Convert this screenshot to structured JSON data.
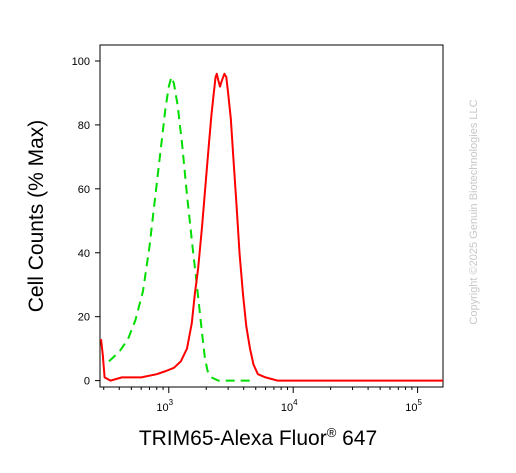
{
  "chart_data": {
    "type": "line",
    "xlabel": "TRIM65-Alexa Fluor",
    "xlabel_superscript": "®",
    "xlabel_suffix": " 647",
    "ylabel": "Cell Counts (% Max)",
    "x_scale": "log",
    "xlim": [
      280,
      160000
    ],
    "ylim": [
      -2,
      105
    ],
    "y_ticks": [
      0,
      20,
      40,
      60,
      80,
      100
    ],
    "x_tick_labels": [
      {
        "value": 1000,
        "base": "10",
        "exp": "3"
      },
      {
        "value": 10000,
        "base": "10",
        "exp": "4"
      },
      {
        "value": 100000,
        "base": "10",
        "exp": "5"
      }
    ],
    "grid": false,
    "series": [
      {
        "color": "#00dd00",
        "style": "dashed",
        "points": [
          [
            330,
            6
          ],
          [
            400,
            9
          ],
          [
            470,
            13
          ],
          [
            540,
            19
          ],
          [
            620,
            28
          ],
          [
            700,
            42
          ],
          [
            780,
            58
          ],
          [
            860,
            72
          ],
          [
            940,
            85
          ],
          [
            1000,
            92
          ],
          [
            1050,
            95
          ],
          [
            1100,
            93
          ],
          [
            1180,
            86
          ],
          [
            1280,
            74
          ],
          [
            1400,
            58
          ],
          [
            1550,
            42
          ],
          [
            1700,
            28
          ],
          [
            1850,
            15
          ],
          [
            1950,
            7
          ],
          [
            2050,
            3
          ],
          [
            2200,
            1
          ],
          [
            2500,
            0
          ],
          [
            3000,
            0
          ],
          [
            5000,
            0
          ]
        ]
      },
      {
        "color": "#ff0000",
        "style": "solid",
        "points": [
          [
            285,
            13
          ],
          [
            295,
            8
          ],
          [
            305,
            1
          ],
          [
            340,
            0
          ],
          [
            420,
            1
          ],
          [
            600,
            1
          ],
          [
            800,
            2
          ],
          [
            950,
            3
          ],
          [
            1100,
            4
          ],
          [
            1250,
            6
          ],
          [
            1400,
            10
          ],
          [
            1530,
            18
          ],
          [
            1620,
            27
          ],
          [
            1720,
            35
          ],
          [
            1850,
            48
          ],
          [
            1980,
            62
          ],
          [
            2100,
            74
          ],
          [
            2200,
            83
          ],
          [
            2300,
            90
          ],
          [
            2380,
            95
          ],
          [
            2430,
            96
          ],
          [
            2500,
            94
          ],
          [
            2580,
            92
          ],
          [
            2680,
            94
          ],
          [
            2800,
            96
          ],
          [
            2900,
            95
          ],
          [
            3000,
            90
          ],
          [
            3150,
            82
          ],
          [
            3300,
            70
          ],
          [
            3500,
            55
          ],
          [
            3700,
            40
          ],
          [
            3950,
            27
          ],
          [
            4200,
            17
          ],
          [
            4500,
            10
          ],
          [
            4800,
            5
          ],
          [
            5200,
            2
          ],
          [
            6000,
            1
          ],
          [
            7500,
            0
          ],
          [
            10000,
            0
          ],
          [
            50000,
            0
          ],
          [
            160000,
            0
          ]
        ]
      }
    ]
  },
  "watermark": "Copyright ©2025 Genuin Biotechnologies LLC"
}
